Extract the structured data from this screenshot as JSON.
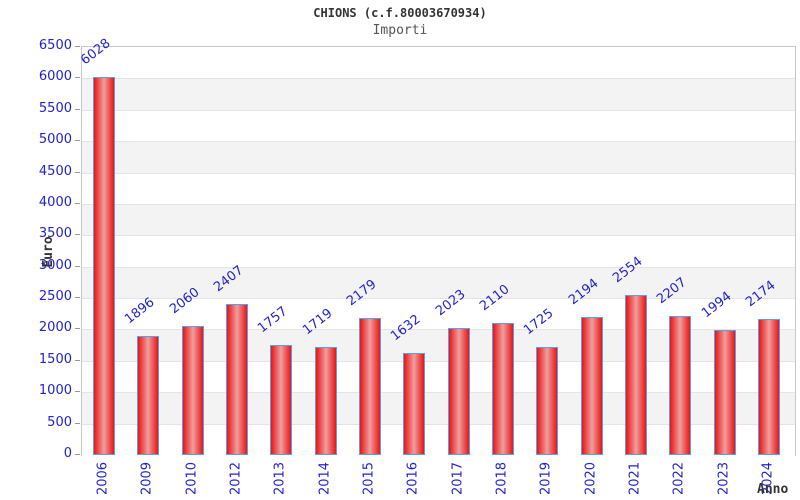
{
  "chart_data": {
    "type": "bar",
    "title": "CHIONS (c.f.80003670934)",
    "subtitle": "Importi",
    "xlabel": "Anno",
    "ylabel": "Euro",
    "categories": [
      "2006",
      "2009",
      "2010",
      "2012",
      "2013",
      "2014",
      "2015",
      "2016",
      "2017",
      "2018",
      "2019",
      "2020",
      "2021",
      "2022",
      "2023",
      "2024"
    ],
    "values": [
      6028,
      1896,
      2060,
      2407,
      1757,
      1719,
      2179,
      1632,
      2023,
      2110,
      1725,
      2194,
      2554,
      2207,
      1994,
      2174
    ],
    "ylim": [
      0,
      6500
    ],
    "ytick_step": 500,
    "legend": "none",
    "grid": "alternating-horizontal-bands",
    "bar_value_labels_rotated": true,
    "x_tick_labels_rotated": true,
    "colors": {
      "bar_edge": "#e81515",
      "bar_mid": "#eda0a0",
      "bar_mid2": "#ef6b6b",
      "bar_border": "#58a0e8",
      "tick_text": "#2222cc",
      "axis_title_text": "#333333",
      "band": "#f3f3f3",
      "gridline": "#e4e4e4",
      "plot_border": "#c8c8c8"
    }
  }
}
